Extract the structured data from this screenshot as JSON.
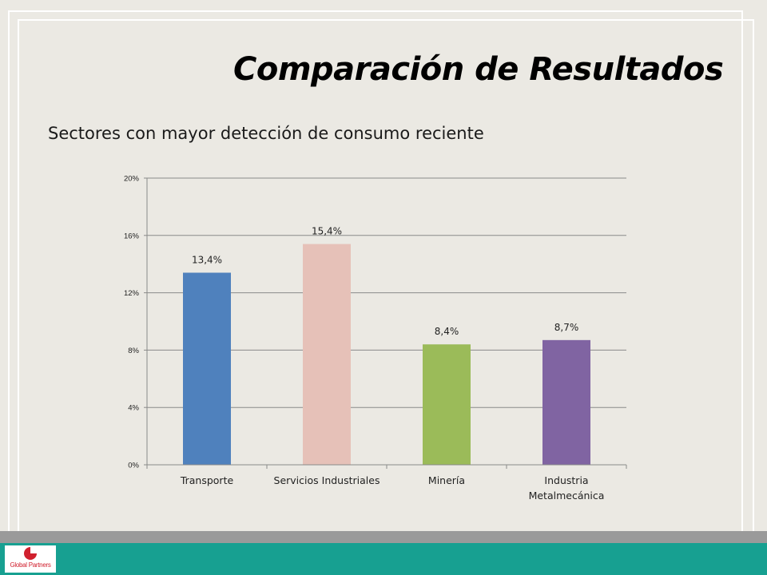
{
  "slide": {
    "title": "Comparación de Resultados",
    "subtitle": "Sectores con mayor detección de consumo reciente"
  },
  "footer": {
    "logo_text": "Global Partners"
  },
  "colors": {
    "background": "#ebe9e3",
    "footer_gray": "#9a9a9a",
    "footer_teal": "#17a091",
    "logo_red": "#d0202e"
  },
  "chart_data": {
    "type": "bar",
    "categories": [
      "Transporte",
      "Servicios Industriales",
      "Minería",
      "Industria Metalmecánica"
    ],
    "category_lines": [
      [
        "Transporte"
      ],
      [
        "Servicios Industriales"
      ],
      [
        "Minería"
      ],
      [
        "Industria",
        "Metalmecánica"
      ]
    ],
    "values": [
      13.4,
      15.4,
      8.4,
      8.7
    ],
    "data_labels": [
      "13,4%",
      "15,4%",
      "8,4%",
      "8,7%"
    ],
    "colors": [
      "#4f81bd",
      "#e6c1b8",
      "#9bbb59",
      "#8064a2"
    ],
    "yticks": [
      0,
      4,
      8,
      12,
      16,
      20
    ],
    "ytick_labels": [
      "0%",
      "4%",
      "8%",
      "12%",
      "16%",
      "20%"
    ],
    "ylim": [
      0,
      20
    ],
    "grid": true,
    "title": "",
    "xlabel": "",
    "ylabel": ""
  }
}
